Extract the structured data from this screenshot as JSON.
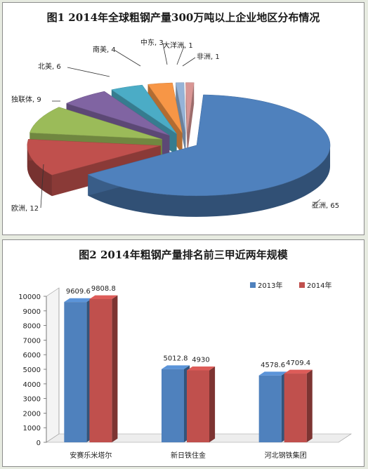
{
  "chart_data": [
    {
      "type": "pie",
      "title": "图1   2014年全球粗钢产量300万吨以上企业地区分布情况",
      "slices": [
        {
          "label": "亚洲",
          "value": 65,
          "display": "亚洲, 65",
          "color": "#4f81bd"
        },
        {
          "label": "欧洲",
          "value": 12,
          "display": "欧洲, 12",
          "color": "#c0504d"
        },
        {
          "label": "独联体",
          "value": 9,
          "display": "独联体, 9",
          "color": "#9bbb59"
        },
        {
          "label": "北美",
          "value": 6,
          "display": "北美, 6",
          "color": "#8064a2"
        },
        {
          "label": "南美",
          "value": 4,
          "display": "南美, 4",
          "color": "#4bacc6"
        },
        {
          "label": "中东",
          "value": 3,
          "display": "中东, 3",
          "color": "#f79646"
        },
        {
          "label": "大洋洲",
          "value": 1,
          "display": "大洋洲, 1",
          "color": "#95b3d7"
        },
        {
          "label": "非洲",
          "value": 1,
          "display": "非洲, 1",
          "color": "#d99694"
        }
      ]
    },
    {
      "type": "bar",
      "title": "图2   2014年粗钢产量排名前三甲近两年规模",
      "categories": [
        "安赛乐米塔尔",
        "新日铁住金",
        "河北钢铁集团"
      ],
      "series": [
        {
          "name": "2013年",
          "values": [
            9609.6,
            5012.8,
            4578.6
          ],
          "labels": [
            "9609.6",
            "5012.8",
            "4578.6"
          ],
          "color": "#4f81bd"
        },
        {
          "name": "2014年",
          "values": [
            9808.8,
            4930,
            4709.4
          ],
          "labels": [
            "9808.8",
            "4930",
            "4709.4"
          ],
          "color": "#c0504d"
        }
      ],
      "ylim": [
        0,
        10000
      ],
      "yticks": [
        0,
        1000,
        2000,
        3000,
        4000,
        5000,
        6000,
        7000,
        8000,
        9000,
        10000
      ],
      "legend": "top-right",
      "grid": false
    }
  ]
}
